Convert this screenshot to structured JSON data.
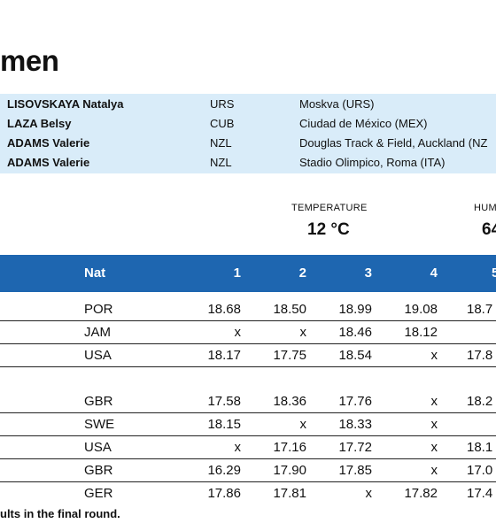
{
  "page": {
    "title": "men"
  },
  "records": [
    {
      "name": "LISOVSKAYA Natalya",
      "nat": "URS",
      "venue": "Moskva (URS)"
    },
    {
      "name": "LAZA Belsy",
      "nat": "CUB",
      "venue": "Ciudad de México (MEX)"
    },
    {
      "name": "ADAMS Valerie",
      "nat": "NZL",
      "venue": "Douglas Track & Field, Auckland (NZ"
    },
    {
      "name": "ADAMS Valerie",
      "nat": "NZL",
      "venue": "Stadio Olimpico, Roma (ITA)"
    }
  ],
  "conditions": {
    "temperature_label": "TEMPERATURE",
    "temperature_value": "12 °C",
    "humidity_label": "HUM",
    "humidity_value": "64"
  },
  "table": {
    "headers": {
      "nat": "Nat",
      "c1": "1",
      "c2": "2",
      "c3": "3",
      "c4": "4",
      "c5": "5"
    },
    "rows": [
      {
        "nat": "POR",
        "r1": "18.68",
        "r2": "18.50",
        "r3": "18.99",
        "r4": "19.08",
        "r5": "18.7"
      },
      {
        "nat": "JAM",
        "r1": "x",
        "r2": "x",
        "r3": "18.46",
        "r4": "18.12",
        "r5": ""
      },
      {
        "nat": "USA",
        "r1": "18.17",
        "r2": "17.75",
        "r3": "18.54",
        "r4": "x",
        "r5": "17.8"
      },
      {
        "nat": "GBR",
        "r1": "17.58",
        "r2": "18.36",
        "r3": "17.76",
        "r4": "x",
        "r5": "18.2"
      },
      {
        "nat": "SWE",
        "r1": "18.15",
        "r2": "x",
        "r3": "18.33",
        "r4": "x",
        "r5": ""
      },
      {
        "nat": "USA",
        "r1": "x",
        "r2": "17.16",
        "r3": "17.72",
        "r4": "x",
        "r5": "18.1"
      },
      {
        "nat": "GBR",
        "r1": "16.29",
        "r2": "17.90",
        "r3": "17.85",
        "r4": "x",
        "r5": "17.0"
      },
      {
        "nat": "GER",
        "r1": "17.86",
        "r2": "17.81",
        "r3": "x",
        "r4": "17.82",
        "r5": "17.4"
      }
    ]
  },
  "footnote": "ults in the final round."
}
